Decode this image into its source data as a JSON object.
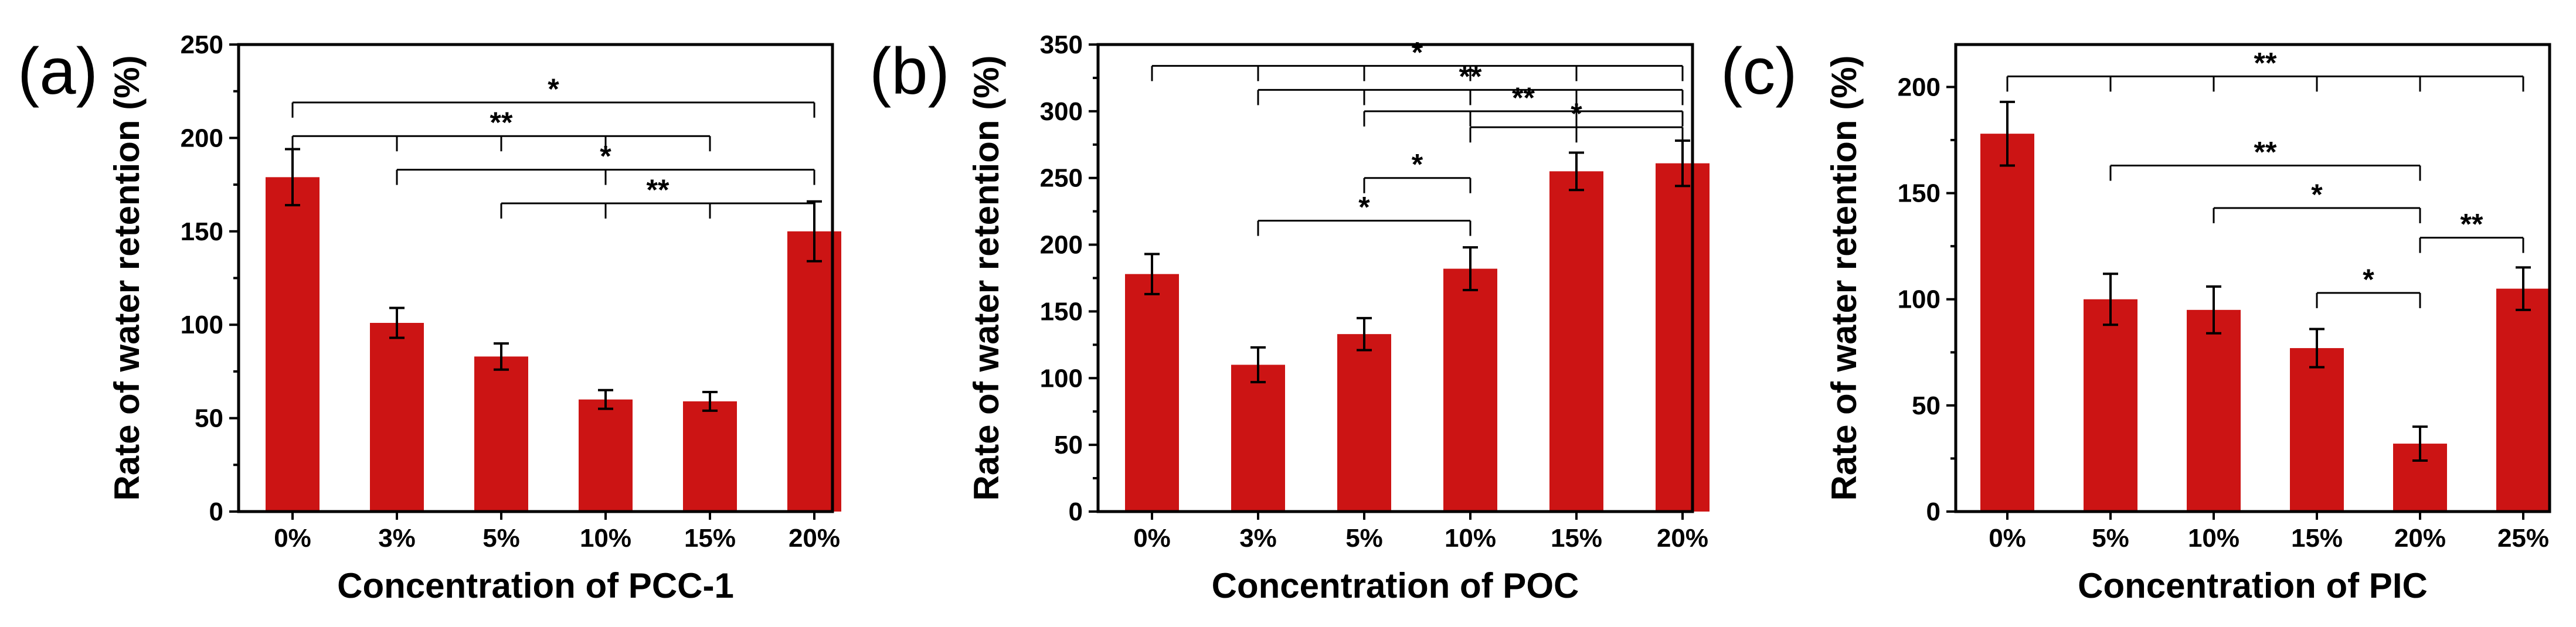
{
  "chart_data": [
    {
      "type": "bar",
      "panel": "(a)",
      "title": "",
      "xlabel": "Concentration of PCC-1",
      "ylabel": "Rate of water retention (%)",
      "ylim": [
        0,
        250
      ],
      "yticks": [
        "0",
        "50",
        "100",
        "150",
        "200",
        "250"
      ],
      "categories": [
        "0%",
        "3%",
        "5%",
        "10%",
        "15%",
        "20%"
      ],
      "values": [
        179,
        101,
        83,
        60,
        59,
        150
      ],
      "errors": [
        15,
        8,
        7,
        5,
        5,
        16
      ],
      "bar_color": "#CC1414",
      "significance": [
        {
          "from": 0,
          "to": 5,
          "ticks": [
            0,
            5
          ],
          "label": "*",
          "y": 219
        },
        {
          "from": 0,
          "to": 4,
          "ticks": [
            0,
            1,
            2,
            3,
            4
          ],
          "label": "**",
          "y": 201
        },
        {
          "from": 1,
          "to": 5,
          "ticks": [
            1,
            3,
            5
          ],
          "label": "*",
          "y": 183
        },
        {
          "from": 2,
          "to": 5,
          "ticks": [
            2,
            3,
            4,
            5
          ],
          "label": "**",
          "y": 165
        }
      ]
    },
    {
      "type": "bar",
      "panel": "(b)",
      "title": "",
      "xlabel": "Concentration of POC",
      "ylabel": "Rate of water retention (%)",
      "ylim": [
        0,
        350
      ],
      "yticks": [
        "0",
        "50",
        "100",
        "150",
        "200",
        "250",
        "300",
        "350"
      ],
      "categories": [
        "0%",
        "3%",
        "5%",
        "10%",
        "15%",
        "20%"
      ],
      "values": [
        178,
        110,
        133,
        182,
        255,
        261
      ],
      "errors": [
        15,
        13,
        12,
        16,
        14,
        17
      ],
      "bar_color": "#CC1414",
      "significance": [
        {
          "from": 0,
          "to": 5,
          "ticks": [
            0,
            1,
            2,
            3,
            4,
            5
          ],
          "label": "*",
          "y": 334
        },
        {
          "from": 1,
          "to": 5,
          "ticks": [
            1,
            2,
            3,
            4,
            5
          ],
          "label": "**",
          "y": 316
        },
        {
          "from": 2,
          "to": 5,
          "ticks": [
            2,
            3,
            4,
            5
          ],
          "label": "**",
          "y": 300
        },
        {
          "from": 3,
          "to": 5,
          "ticks": [
            3,
            4,
            5
          ],
          "label": "*",
          "y": 288
        },
        {
          "from": 2,
          "to": 3,
          "ticks": [
            2,
            3
          ],
          "label": "*",
          "y": 250
        },
        {
          "from": 1,
          "to": 3,
          "ticks": [
            1,
            3
          ],
          "label": "*",
          "y": 218
        }
      ]
    },
    {
      "type": "bar",
      "panel": "(c)",
      "title": "",
      "xlabel": "Concentration of PIC",
      "ylabel": "Rate of water retention (%)",
      "ylim": [
        0,
        220
      ],
      "yticks": [
        "0",
        "50",
        "100",
        "150",
        "200"
      ],
      "categories": [
        "0%",
        "5%",
        "10%",
        "15%",
        "20%",
        "25%"
      ],
      "values": [
        178,
        100,
        95,
        77,
        32,
        105
      ],
      "errors": [
        15,
        12,
        11,
        9,
        8,
        10
      ],
      "bar_color": "#CC1414",
      "significance": [
        {
          "from": 0,
          "to": 5,
          "ticks": [
            0,
            1,
            2,
            3,
            4,
            5
          ],
          "label": "**",
          "y": 205
        },
        {
          "from": 1,
          "to": 4,
          "ticks": [
            1,
            4
          ],
          "label": "**",
          "y": 163
        },
        {
          "from": 2,
          "to": 4,
          "ticks": [
            2,
            4
          ],
          "label": "*",
          "y": 143
        },
        {
          "from": 4,
          "to": 5,
          "ticks": [
            4,
            5
          ],
          "label": "**",
          "y": 129
        },
        {
          "from": 3,
          "to": 4,
          "ticks": [
            3,
            4
          ],
          "label": "*",
          "y": 103
        }
      ]
    }
  ]
}
